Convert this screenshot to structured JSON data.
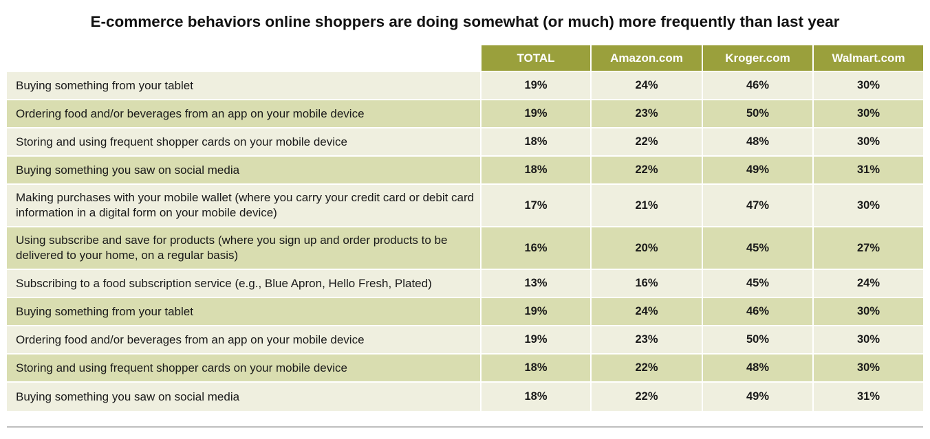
{
  "chart_data": {
    "type": "table",
    "title": "E-commerce behaviors online shoppers are doing somewhat (or much) more frequently than last year",
    "columns": [
      "TOTAL",
      "Amazon.com",
      "Kroger.com",
      "Walmart.com"
    ],
    "rows": [
      {
        "label": "Buying something from your tablet",
        "values": [
          "19%",
          "24%",
          "46%",
          "30%"
        ]
      },
      {
        "label": "Ordering food and/or beverages from an app on your mobile device",
        "values": [
          "19%",
          "23%",
          "50%",
          "30%"
        ]
      },
      {
        "label": "Storing and using frequent shopper cards on your mobile device",
        "values": [
          "18%",
          "22%",
          "48%",
          "30%"
        ]
      },
      {
        "label": "Buying something you saw on social media",
        "values": [
          "18%",
          "22%",
          "49%",
          "31%"
        ]
      },
      {
        "label": "Making purchases with your mobile wallet (where you carry your credit card or debit card information in a digital form on your mobile device)",
        "values": [
          "17%",
          "21%",
          "47%",
          "30%"
        ]
      },
      {
        "label": "Using subscribe and save for products (where you sign up and order products to be delivered to your home, on a regular basis)",
        "values": [
          "16%",
          "20%",
          "45%",
          "27%"
        ]
      },
      {
        "label": "Subscribing to a food subscription service (e.g., Blue Apron, Hello Fresh, Plated)",
        "values": [
          "13%",
          "16%",
          "45%",
          "24%"
        ]
      },
      {
        "label": "Buying something from your tablet",
        "values": [
          "19%",
          "24%",
          "46%",
          "30%"
        ]
      },
      {
        "label": "Ordering food and/or beverages from an app on your mobile device",
        "values": [
          "19%",
          "23%",
          "50%",
          "30%"
        ]
      },
      {
        "label": "Storing and using frequent shopper cards on your mobile device",
        "values": [
          "18%",
          "22%",
          "48%",
          "30%"
        ]
      },
      {
        "label": "Buying something you saw on social media",
        "values": [
          "18%",
          "22%",
          "49%",
          "31%"
        ]
      }
    ],
    "colors": {
      "header": "#9aa03c",
      "row_light": "#efefdf",
      "row_dark": "#d9ddb0"
    }
  }
}
